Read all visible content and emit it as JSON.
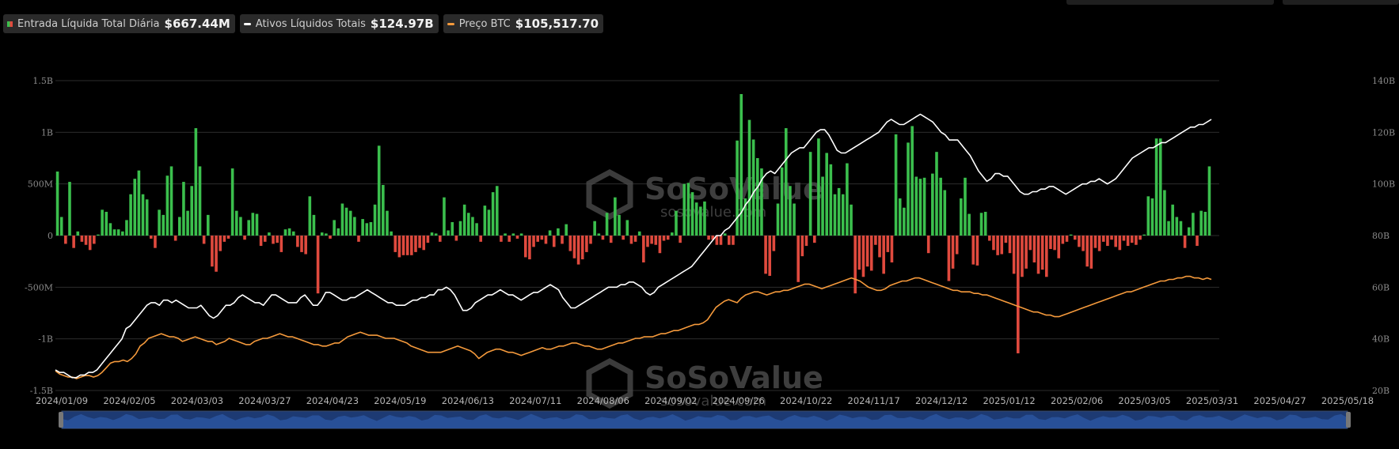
{
  "legend": {
    "inflow": {
      "label": "Entrada Líquida Total Diária",
      "value": "$667.44M",
      "color_pos": "#3bbf4d",
      "color_neg": "#e04a3e"
    },
    "assets": {
      "label": "Ativos Líquidos Totais",
      "value": "$124.97B",
      "color": "#ffffff"
    },
    "btc": {
      "label": "Preço BTC",
      "value": "$105,517.70",
      "color": "#f59a3c"
    }
  },
  "watermark": {
    "brand": "SoSoValue",
    "url": "sosovalue.com"
  },
  "chart_data": {
    "type": "bar+line",
    "x_ticks": [
      "2024/01/09",
      "2024/02/05",
      "2024/03/03",
      "2024/03/27",
      "2024/04/23",
      "2024/05/19",
      "2024/06/13",
      "2024/07/11",
      "2024/08/06",
      "2024/09/02",
      "2024/09/26",
      "2024/10/22",
      "2024/11/17",
      "2024/12/12",
      "2025/01/12",
      "2025/02/06",
      "2025/03/05",
      "2025/03/31",
      "2025/04/27",
      "2025/05/18"
    ],
    "y_left": {
      "ticks": [
        "1.5B",
        "1B",
        "500M",
        "0",
        "-500M",
        "-1B",
        "-1.5B"
      ],
      "range": [
        -1500,
        1500
      ],
      "unit": "M"
    },
    "y_right": {
      "ticks": [
        "140B",
        "120B",
        "100B",
        "80B",
        "60B",
        "40B",
        "20B"
      ],
      "range": [
        20,
        140
      ],
      "unit": "B"
    },
    "inflow_series": [
      620,
      180,
      -80,
      520,
      -120,
      40,
      -60,
      -90,
      -140,
      -80,
      10,
      250,
      230,
      120,
      60,
      60,
      40,
      150,
      400,
      550,
      630,
      400,
      350,
      -30,
      -120,
      250,
      200,
      580,
      670,
      -50,
      180,
      520,
      240,
      480,
      1040,
      670,
      -80,
      200,
      -300,
      -350,
      -150,
      -60,
      -30,
      650,
      240,
      180,
      -40,
      150,
      220,
      210,
      -100,
      -60,
      30,
      -80,
      -70,
      -160,
      60,
      70,
      40,
      -110,
      -160,
      -180,
      380,
      200,
      -560,
      30,
      20,
      -30,
      150,
      70,
      310,
      270,
      240,
      180,
      -60,
      160,
      120,
      130,
      300,
      870,
      490,
      240,
      40,
      -160,
      -210,
      -190,
      -190,
      -190,
      -160,
      -120,
      -140,
      -70,
      30,
      20,
      -60,
      370,
      50,
      130,
      -50,
      140,
      300,
      220,
      180,
      120,
      -60,
      290,
      250,
      420,
      480,
      -60,
      20,
      -60,
      20,
      -30,
      20,
      -210,
      -230,
      -110,
      -60,
      -40,
      -80,
      50,
      -110,
      70,
      -80,
      110,
      -150,
      -220,
      -280,
      -230,
      -160,
      -80,
      140,
      20,
      -40,
      220,
      -70,
      370,
      200,
      -40,
      150,
      -80,
      -60,
      40,
      -260,
      -110,
      -80,
      -90,
      -170,
      -50,
      -40,
      30,
      240,
      -70,
      500,
      510,
      420,
      320,
      280,
      330,
      -40,
      -40,
      -90,
      -90,
      20,
      -90,
      -90,
      920,
      1370,
      360,
      1120,
      930,
      750,
      650,
      -370,
      -390,
      -150,
      310,
      660,
      1040,
      480,
      310,
      -450,
      -200,
      -100,
      810,
      -70,
      940,
      570,
      800,
      690,
      400,
      460,
      400,
      700,
      300,
      -560,
      -330,
      -400,
      -300,
      -340,
      -90,
      -210,
      -370,
      -160,
      -260,
      980,
      360,
      270,
      900,
      1060,
      570,
      550,
      560,
      -170,
      600,
      810,
      560,
      440,
      -440,
      -320,
      -180,
      360,
      560,
      210,
      -280,
      -290,
      220,
      230,
      -50,
      -140,
      -190,
      -180,
      -70,
      -170,
      -370,
      -1140,
      -400,
      -320,
      -140,
      -260,
      -370,
      -330,
      -400,
      -130,
      -140,
      -220,
      -80,
      -60,
      10,
      -40,
      -110,
      -150,
      -300,
      -320,
      -120,
      -150,
      -60,
      -100,
      -40,
      -110,
      -140,
      -50,
      -100,
      -70,
      -90,
      -40,
      10,
      380,
      360,
      940,
      940,
      440,
      140,
      300,
      180,
      140,
      -120,
      80,
      220,
      -100,
      240,
      230,
      670
    ],
    "assets_B": [
      28,
      27,
      27,
      26,
      25,
      25,
      26,
      26,
      27,
      27,
      28,
      30,
      32,
      34,
      36,
      38,
      40,
      44,
      45,
      47,
      49,
      51,
      53,
      54,
      54,
      53,
      55,
      55,
      54,
      55,
      54,
      53,
      52,
      52,
      52,
      53,
      51,
      49,
      48,
      49,
      51,
      53,
      53,
      54,
      56,
      57,
      56,
      55,
      54,
      54,
      53,
      55,
      57,
      57,
      56,
      55,
      54,
      54,
      54,
      56,
      57,
      55,
      53,
      53,
      55,
      58,
      58,
      57,
      56,
      55,
      55,
      56,
      56,
      57,
      58,
      59,
      58,
      57,
      56,
      55,
      54,
      54,
      53,
      53,
      53,
      54,
      55,
      55,
      56,
      56,
      57,
      57,
      59,
      59,
      60,
      59,
      57,
      54,
      51,
      51,
      52,
      54,
      55,
      56,
      57,
      57,
      58,
      59,
      58,
      57,
      57,
      56,
      55,
      56,
      57,
      58,
      58,
      59,
      60,
      61,
      60,
      59,
      56,
      54,
      52,
      52,
      53,
      54,
      55,
      56,
      57,
      58,
      59,
      60,
      60,
      60,
      61,
      61,
      62,
      62,
      61,
      60,
      58,
      57,
      58,
      60,
      61,
      62,
      63,
      64,
      65,
      66,
      67,
      68,
      70,
      72,
      74,
      76,
      78,
      80,
      80,
      82,
      83,
      85,
      87,
      89,
      92,
      94,
      97,
      99,
      102,
      104,
      105,
      104,
      106,
      108,
      110,
      112,
      113,
      114,
      114,
      116,
      118,
      120,
      121,
      121,
      119,
      116,
      113,
      112,
      112,
      113,
      114,
      115,
      116,
      117,
      118,
      119,
      120,
      122,
      124,
      125,
      124,
      123,
      123,
      124,
      125,
      126,
      127,
      126,
      125,
      124,
      122,
      120,
      119,
      117,
      117,
      117,
      115,
      113,
      111,
      108,
      105,
      103,
      101,
      102,
      104,
      104,
      103,
      103,
      101,
      99,
      97,
      96,
      96,
      97,
      97,
      98,
      98,
      99,
      99,
      98,
      97,
      96,
      97,
      98,
      99,
      100,
      100,
      101,
      101,
      102,
      101,
      100,
      101,
      102,
      104,
      106,
      108,
      110,
      111,
      112,
      113,
      114,
      114,
      115,
      116,
      116,
      117,
      118,
      119,
      120,
      121,
      122,
      122,
      123,
      123,
      124,
      125
    ],
    "btc_price_K": [
      46,
      44,
      43,
      42,
      42,
      41,
      42,
      43,
      43,
      42,
      43,
      45,
      48,
      51,
      52,
      52,
      53,
      52,
      54,
      57,
      62,
      64,
      67,
      68,
      69,
      70,
      69,
      68,
      68,
      67,
      65,
      66,
      67,
      68,
      67,
      66,
      65,
      65,
      63,
      64,
      65,
      67,
      66,
      65,
      64,
      63,
      63,
      65,
      66,
      67,
      67,
      68,
      69,
      70,
      69,
      68,
      68,
      67,
      66,
      65,
      64,
      63,
      63,
      62,
      62,
      63,
      64,
      64,
      66,
      68,
      69,
      70,
      71,
      70,
      69,
      69,
      69,
      68,
      67,
      67,
      67,
      66,
      65,
      64,
      62,
      61,
      60,
      59,
      58,
      58,
      58,
      58,
      59,
      60,
      61,
      62,
      61,
      60,
      59,
      57,
      54,
      56,
      58,
      59,
      60,
      60,
      59,
      58,
      58,
      57,
      56,
      57,
      58,
      59,
      60,
      61,
      60,
      60,
      61,
      62,
      62,
      63,
      64,
      64,
      63,
      62,
      62,
      61,
      60,
      60,
      61,
      62,
      63,
      64,
      64,
      65,
      66,
      67,
      67,
      68,
      68,
      68,
      69,
      70,
      70,
      71,
      72,
      72,
      73,
      74,
      75,
      76,
      76,
      77,
      79,
      83,
      87,
      89,
      91,
      92,
      91,
      90,
      93,
      95,
      96,
      97,
      97,
      96,
      95,
      96,
      97,
      97,
      98,
      98,
      99,
      100,
      101,
      102,
      102,
      101,
      100,
      99,
      100,
      101,
      102,
      103,
      104,
      105,
      106,
      105,
      104,
      102,
      100,
      99,
      98,
      98,
      99,
      101,
      102,
      103,
      104,
      104,
      105,
      106,
      106,
      105,
      104,
      103,
      102,
      101,
      100,
      99,
      98,
      98,
      97,
      97,
      97,
      96,
      96,
      95,
      95,
      94,
      93,
      92,
      91,
      90,
      89,
      88,
      87,
      86,
      85,
      84,
      84,
      83,
      82,
      82,
      81,
      81,
      82,
      83,
      84,
      85,
      86,
      87,
      88,
      89,
      90,
      91,
      92,
      93,
      94,
      95,
      96,
      97,
      97,
      98,
      99,
      100,
      101,
      102,
      103,
      104,
      104,
      105,
      105,
      106,
      106,
      107,
      107,
      106,
      106,
      105,
      106,
      105
    ]
  }
}
